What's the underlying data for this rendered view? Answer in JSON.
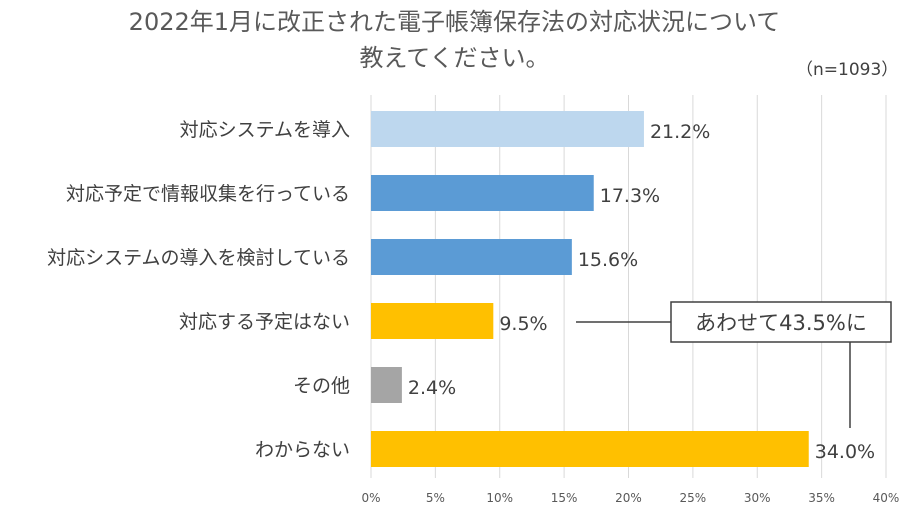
{
  "chart_data": {
    "type": "bar",
    "orientation": "horizontal",
    "title_lines": [
      "2022年1月に改正された電子帳簿保存法の対応状況について",
      "教えてください。"
    ],
    "sample_note": "（n=1093）",
    "categories": [
      "対応システムを導入",
      "対応予定で情報収集を行っている",
      "対応システムの導入を検討している",
      "対応する予定はない",
      "その他",
      "わからない"
    ],
    "values": [
      21.2,
      17.3,
      15.6,
      9.5,
      2.4,
      34.0
    ],
    "value_labels": [
      "21.2%",
      "17.3%",
      "15.6%",
      "9.5%",
      "2.4%",
      "34.0%"
    ],
    "bar_colors": [
      "#BDD7EE",
      "#5B9BD5",
      "#5B9BD5",
      "#FFC000",
      "#A5A5A5",
      "#FFC000"
    ],
    "xlim": [
      0,
      40
    ],
    "xticks": [
      0,
      5,
      10,
      15,
      20,
      25,
      30,
      35,
      40
    ],
    "xtick_labels": [
      "0%",
      "5%",
      "10%",
      "15%",
      "20%",
      "25%",
      "30%",
      "35%",
      "40%"
    ],
    "grid": true,
    "annotation": {
      "text": "あわせて43.5%に",
      "links_categories": [
        "対応する予定はない",
        "わからない"
      ]
    }
  }
}
